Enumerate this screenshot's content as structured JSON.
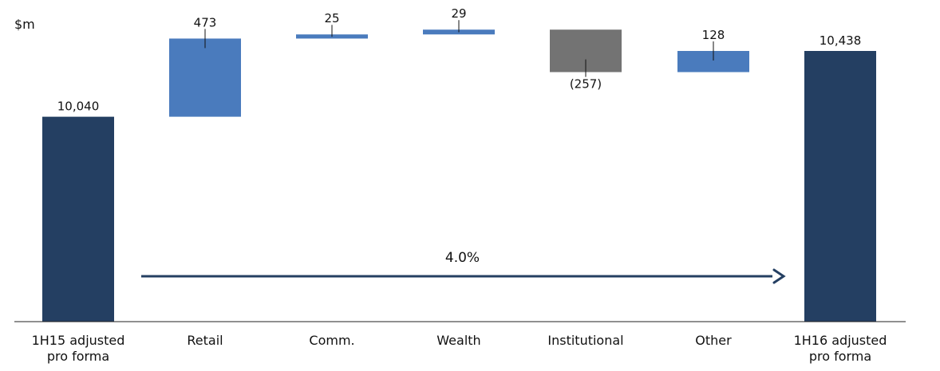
{
  "chart_data": {
    "type": "bar",
    "subtype": "waterfall",
    "unit_label": "$m",
    "categories": [
      [
        "1H15 adjusted",
        "pro forma"
      ],
      [
        "Retail"
      ],
      [
        "Comm."
      ],
      [
        "Wealth"
      ],
      [
        "Institutional"
      ],
      [
        "Other"
      ],
      [
        "1H16 adjusted",
        "pro forma"
      ]
    ],
    "values": [
      10040,
      473,
      25,
      29,
      -257,
      128,
      10438
    ],
    "value_labels": [
      "10,040",
      "473",
      "25",
      "29",
      "(257)",
      "128",
      "10,438"
    ],
    "bar_kinds": [
      "total",
      "increase",
      "increase",
      "increase",
      "decrease",
      "increase",
      "total"
    ],
    "ylim": [
      8800,
      10650
    ],
    "growth_annotation": "4.0%",
    "grid": false,
    "legend": "none",
    "colors": {
      "total": "#243f62",
      "increase": "#4a7bbd",
      "decrease": "#737373",
      "arrow": "#243f62",
      "axis": "#222222"
    }
  }
}
